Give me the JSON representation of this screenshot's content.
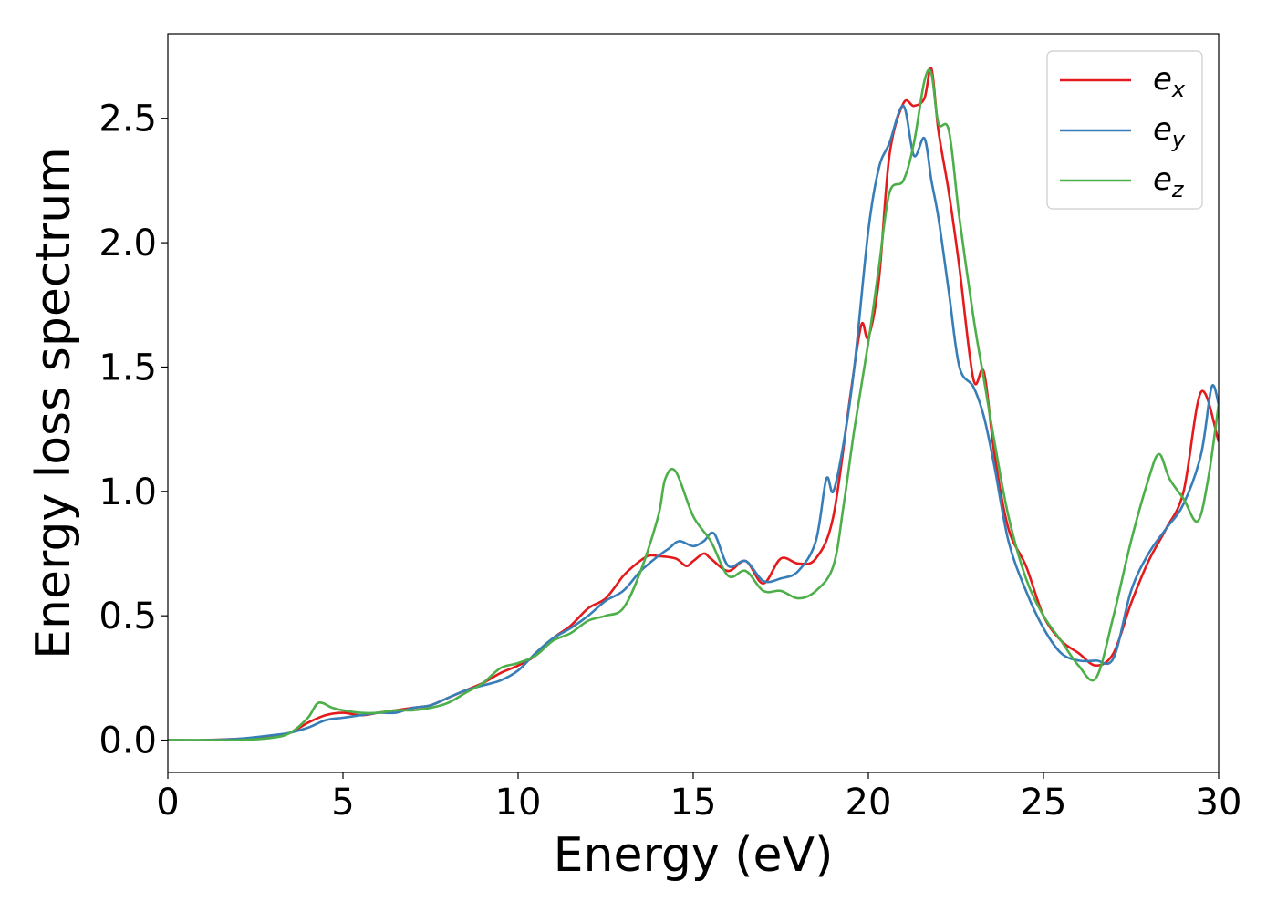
{
  "chart_data": {
    "type": "line",
    "xlabel": "Energy (eV)",
    "ylabel": "Energy loss spectrum",
    "xlim": [
      0,
      30
    ],
    "ylim": [
      -0.13,
      2.84
    ],
    "xticks": [
      "0",
      "5",
      "10",
      "15",
      "20",
      "25",
      "30"
    ],
    "yticks": [
      "0.0",
      "0.5",
      "1.0",
      "1.5",
      "2.0",
      "2.5"
    ],
    "grid": false,
    "legend_position": "top-right",
    "series": [
      {
        "name": "e_x",
        "label_base": "e",
        "label_sub": "x",
        "color": "#e41a1c",
        "x": [
          0,
          1,
          2,
          3,
          3.5,
          4,
          4.5,
          5,
          5.5,
          6,
          6.5,
          7,
          7.5,
          8,
          8.5,
          9,
          9.5,
          10,
          10.5,
          11,
          11.5,
          12,
          12.5,
          13,
          13.3,
          13.7,
          14,
          14.5,
          14.8,
          15,
          15.3,
          15.5,
          16,
          16.5,
          17,
          17.5,
          18,
          18.5,
          19,
          19.5,
          19.8,
          20,
          20.3,
          20.6,
          21,
          21.3,
          21.6,
          21.8,
          22,
          22.3,
          22.6,
          23,
          23.3,
          23.6,
          24,
          24.5,
          25,
          25.5,
          26,
          26.5,
          27,
          27.5,
          28,
          28.5,
          29,
          29.5,
          30
        ],
        "y": [
          0,
          0,
          0.005,
          0.015,
          0.03,
          0.07,
          0.1,
          0.11,
          0.1,
          0.11,
          0.12,
          0.13,
          0.14,
          0.17,
          0.2,
          0.23,
          0.27,
          0.3,
          0.34,
          0.41,
          0.46,
          0.53,
          0.57,
          0.66,
          0.7,
          0.74,
          0.74,
          0.73,
          0.7,
          0.72,
          0.75,
          0.73,
          0.68,
          0.72,
          0.63,
          0.73,
          0.71,
          0.73,
          0.9,
          1.4,
          1.67,
          1.62,
          1.85,
          2.35,
          2.56,
          2.55,
          2.58,
          2.7,
          2.45,
          2.2,
          1.9,
          1.45,
          1.48,
          1.15,
          0.85,
          0.7,
          0.5,
          0.4,
          0.35,
          0.3,
          0.35,
          0.55,
          0.72,
          0.85,
          1.0,
          1.4,
          1.2
        ]
      },
      {
        "name": "e_y",
        "label_base": "e",
        "label_sub": "y",
        "color": "#377eb8",
        "x": [
          0,
          1,
          2,
          3,
          3.5,
          4,
          4.5,
          5,
          5.5,
          6,
          6.5,
          7,
          7.5,
          8,
          8.5,
          9,
          9.5,
          10,
          10.5,
          11,
          11.5,
          12,
          12.5,
          13,
          13.5,
          14,
          14.3,
          14.6,
          15,
          15.3,
          15.6,
          16,
          16.5,
          17,
          17.5,
          18,
          18.5,
          18.8,
          19,
          19.3,
          19.6,
          20,
          20.3,
          20.6,
          21,
          21.3,
          21.6,
          21.8,
          22,
          22.3,
          22.6,
          23,
          23.3,
          23.6,
          24,
          24.5,
          25,
          25.5,
          26,
          26.5,
          27,
          27.5,
          28,
          28.5,
          29,
          29.5,
          29.8,
          30
        ],
        "y": [
          0,
          0,
          0.005,
          0.02,
          0.03,
          0.05,
          0.08,
          0.09,
          0.1,
          0.11,
          0.11,
          0.13,
          0.14,
          0.17,
          0.2,
          0.22,
          0.24,
          0.28,
          0.35,
          0.41,
          0.45,
          0.5,
          0.56,
          0.6,
          0.68,
          0.74,
          0.77,
          0.8,
          0.78,
          0.8,
          0.83,
          0.7,
          0.72,
          0.64,
          0.65,
          0.68,
          0.8,
          1.05,
          1.0,
          1.2,
          1.5,
          2.05,
          2.3,
          2.4,
          2.55,
          2.35,
          2.42,
          2.25,
          2.1,
          1.8,
          1.5,
          1.42,
          1.3,
          1.1,
          0.8,
          0.6,
          0.45,
          0.35,
          0.32,
          0.32,
          0.33,
          0.6,
          0.75,
          0.85,
          0.95,
          1.15,
          1.42,
          1.35
        ]
      },
      {
        "name": "e_z",
        "label_base": "e",
        "label_sub": "z",
        "color": "#4daf4a",
        "x": [
          0,
          1,
          2,
          3,
          3.5,
          4,
          4.3,
          4.7,
          5,
          5.5,
          6,
          6.5,
          7,
          7.5,
          8,
          8.5,
          9,
          9.5,
          10,
          10.5,
          11,
          11.5,
          12,
          12.5,
          13,
          13.5,
          14,
          14.2,
          14.5,
          15,
          15.5,
          16,
          16.5,
          17,
          17.5,
          18,
          18.5,
          19,
          19.3,
          19.6,
          20,
          20.3,
          20.6,
          21,
          21.3,
          21.6,
          21.8,
          22,
          22.3,
          22.6,
          23,
          23.3,
          23.6,
          24,
          24.5,
          25,
          25.5,
          26,
          26.5,
          27,
          27.5,
          28,
          28.3,
          28.6,
          29,
          29.4,
          29.7,
          30
        ],
        "y": [
          0,
          0,
          0,
          0.01,
          0.03,
          0.09,
          0.15,
          0.13,
          0.12,
          0.11,
          0.11,
          0.12,
          0.12,
          0.13,
          0.15,
          0.19,
          0.23,
          0.29,
          0.31,
          0.34,
          0.4,
          0.43,
          0.48,
          0.5,
          0.53,
          0.68,
          0.9,
          1.05,
          1.08,
          0.9,
          0.8,
          0.66,
          0.68,
          0.6,
          0.6,
          0.57,
          0.6,
          0.7,
          0.95,
          1.25,
          1.6,
          1.9,
          2.2,
          2.25,
          2.4,
          2.65,
          2.68,
          2.48,
          2.45,
          2.1,
          1.7,
          1.45,
          1.2,
          0.9,
          0.65,
          0.5,
          0.4,
          0.3,
          0.25,
          0.5,
          0.8,
          1.05,
          1.15,
          1.05,
          0.97,
          0.88,
          1.05,
          1.35
        ]
      }
    ]
  }
}
